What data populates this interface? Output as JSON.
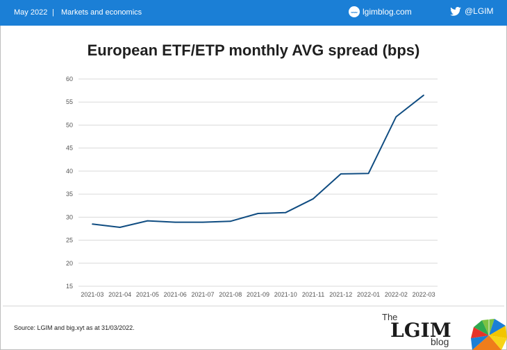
{
  "header": {
    "date": "May 2022",
    "separator": "|",
    "section": "Markets and economics",
    "site": "lgimblog.com",
    "site_icon_text": "www",
    "handle": "@LGIM",
    "bg_color": "#1b7fd6"
  },
  "chart_data": {
    "type": "line",
    "title": "European ETF/ETP monthly AVG spread (bps)",
    "xlabel": "",
    "ylabel": "",
    "categories": [
      "2021-03",
      "2021-04",
      "2021-05",
      "2021-06",
      "2021-07",
      "2021-08",
      "2021-09",
      "2021-10",
      "2021-11",
      "2021-12",
      "2022-01",
      "2022-02",
      "2022-03"
    ],
    "series": [
      {
        "values": [
          28.5,
          27.8,
          29.2,
          28.9,
          28.9,
          29.1,
          30.8,
          31.0,
          34.0,
          39.4,
          39.5,
          51.8,
          56.5
        ],
        "color": "#0f4c81"
      }
    ],
    "ylim": [
      15,
      60
    ],
    "yticks": [
      15,
      20,
      25,
      30,
      35,
      40,
      45,
      50,
      55,
      60
    ],
    "grid": true,
    "legend": "none"
  },
  "footer": {
    "source": "Source: LGIM and big.xyt  as at 31/03/2022.",
    "logo_the": "The",
    "logo_lgim": "LGIM",
    "logo_blog": "blog"
  }
}
